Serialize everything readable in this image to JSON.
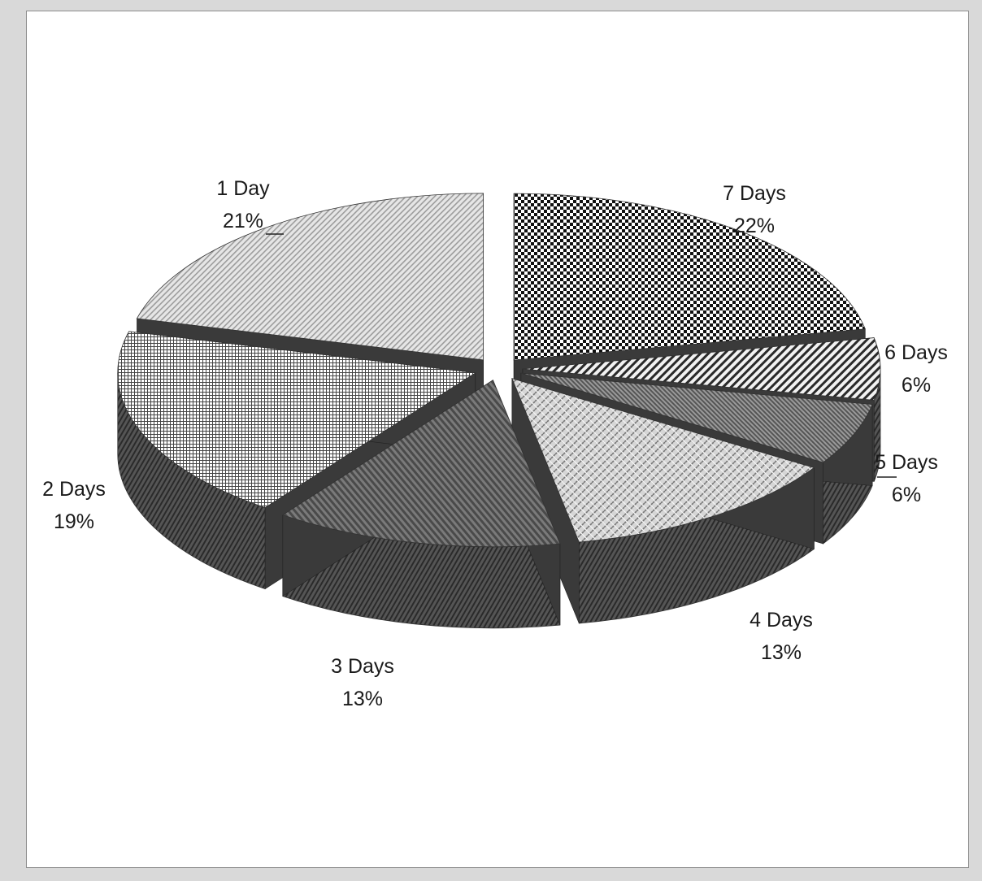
{
  "chart_data": {
    "type": "pie",
    "style": "3d-exploded",
    "title": "",
    "slices": [
      {
        "label": "7 Days",
        "pct_label": "22%",
        "value": 22,
        "pattern": "checker"
      },
      {
        "label": "6 Days",
        "pct_label": "6%",
        "value": 6,
        "pattern": "diag-right"
      },
      {
        "label": "5 Days",
        "pct_label": "6%",
        "value": 6,
        "pattern": "dense-diag"
      },
      {
        "label": "4 Days",
        "pct_label": "13%",
        "value": 13,
        "pattern": "plate"
      },
      {
        "label": "3 Days",
        "pct_label": "13%",
        "value": 13,
        "pattern": "diag-left-dark"
      },
      {
        "label": "2 Days",
        "pct_label": "19%",
        "value": 19,
        "pattern": "grid"
      },
      {
        "label": "1 Day",
        "pct_label": "21%",
        "value": 21,
        "pattern": "diag-light"
      }
    ],
    "legend": "none"
  }
}
